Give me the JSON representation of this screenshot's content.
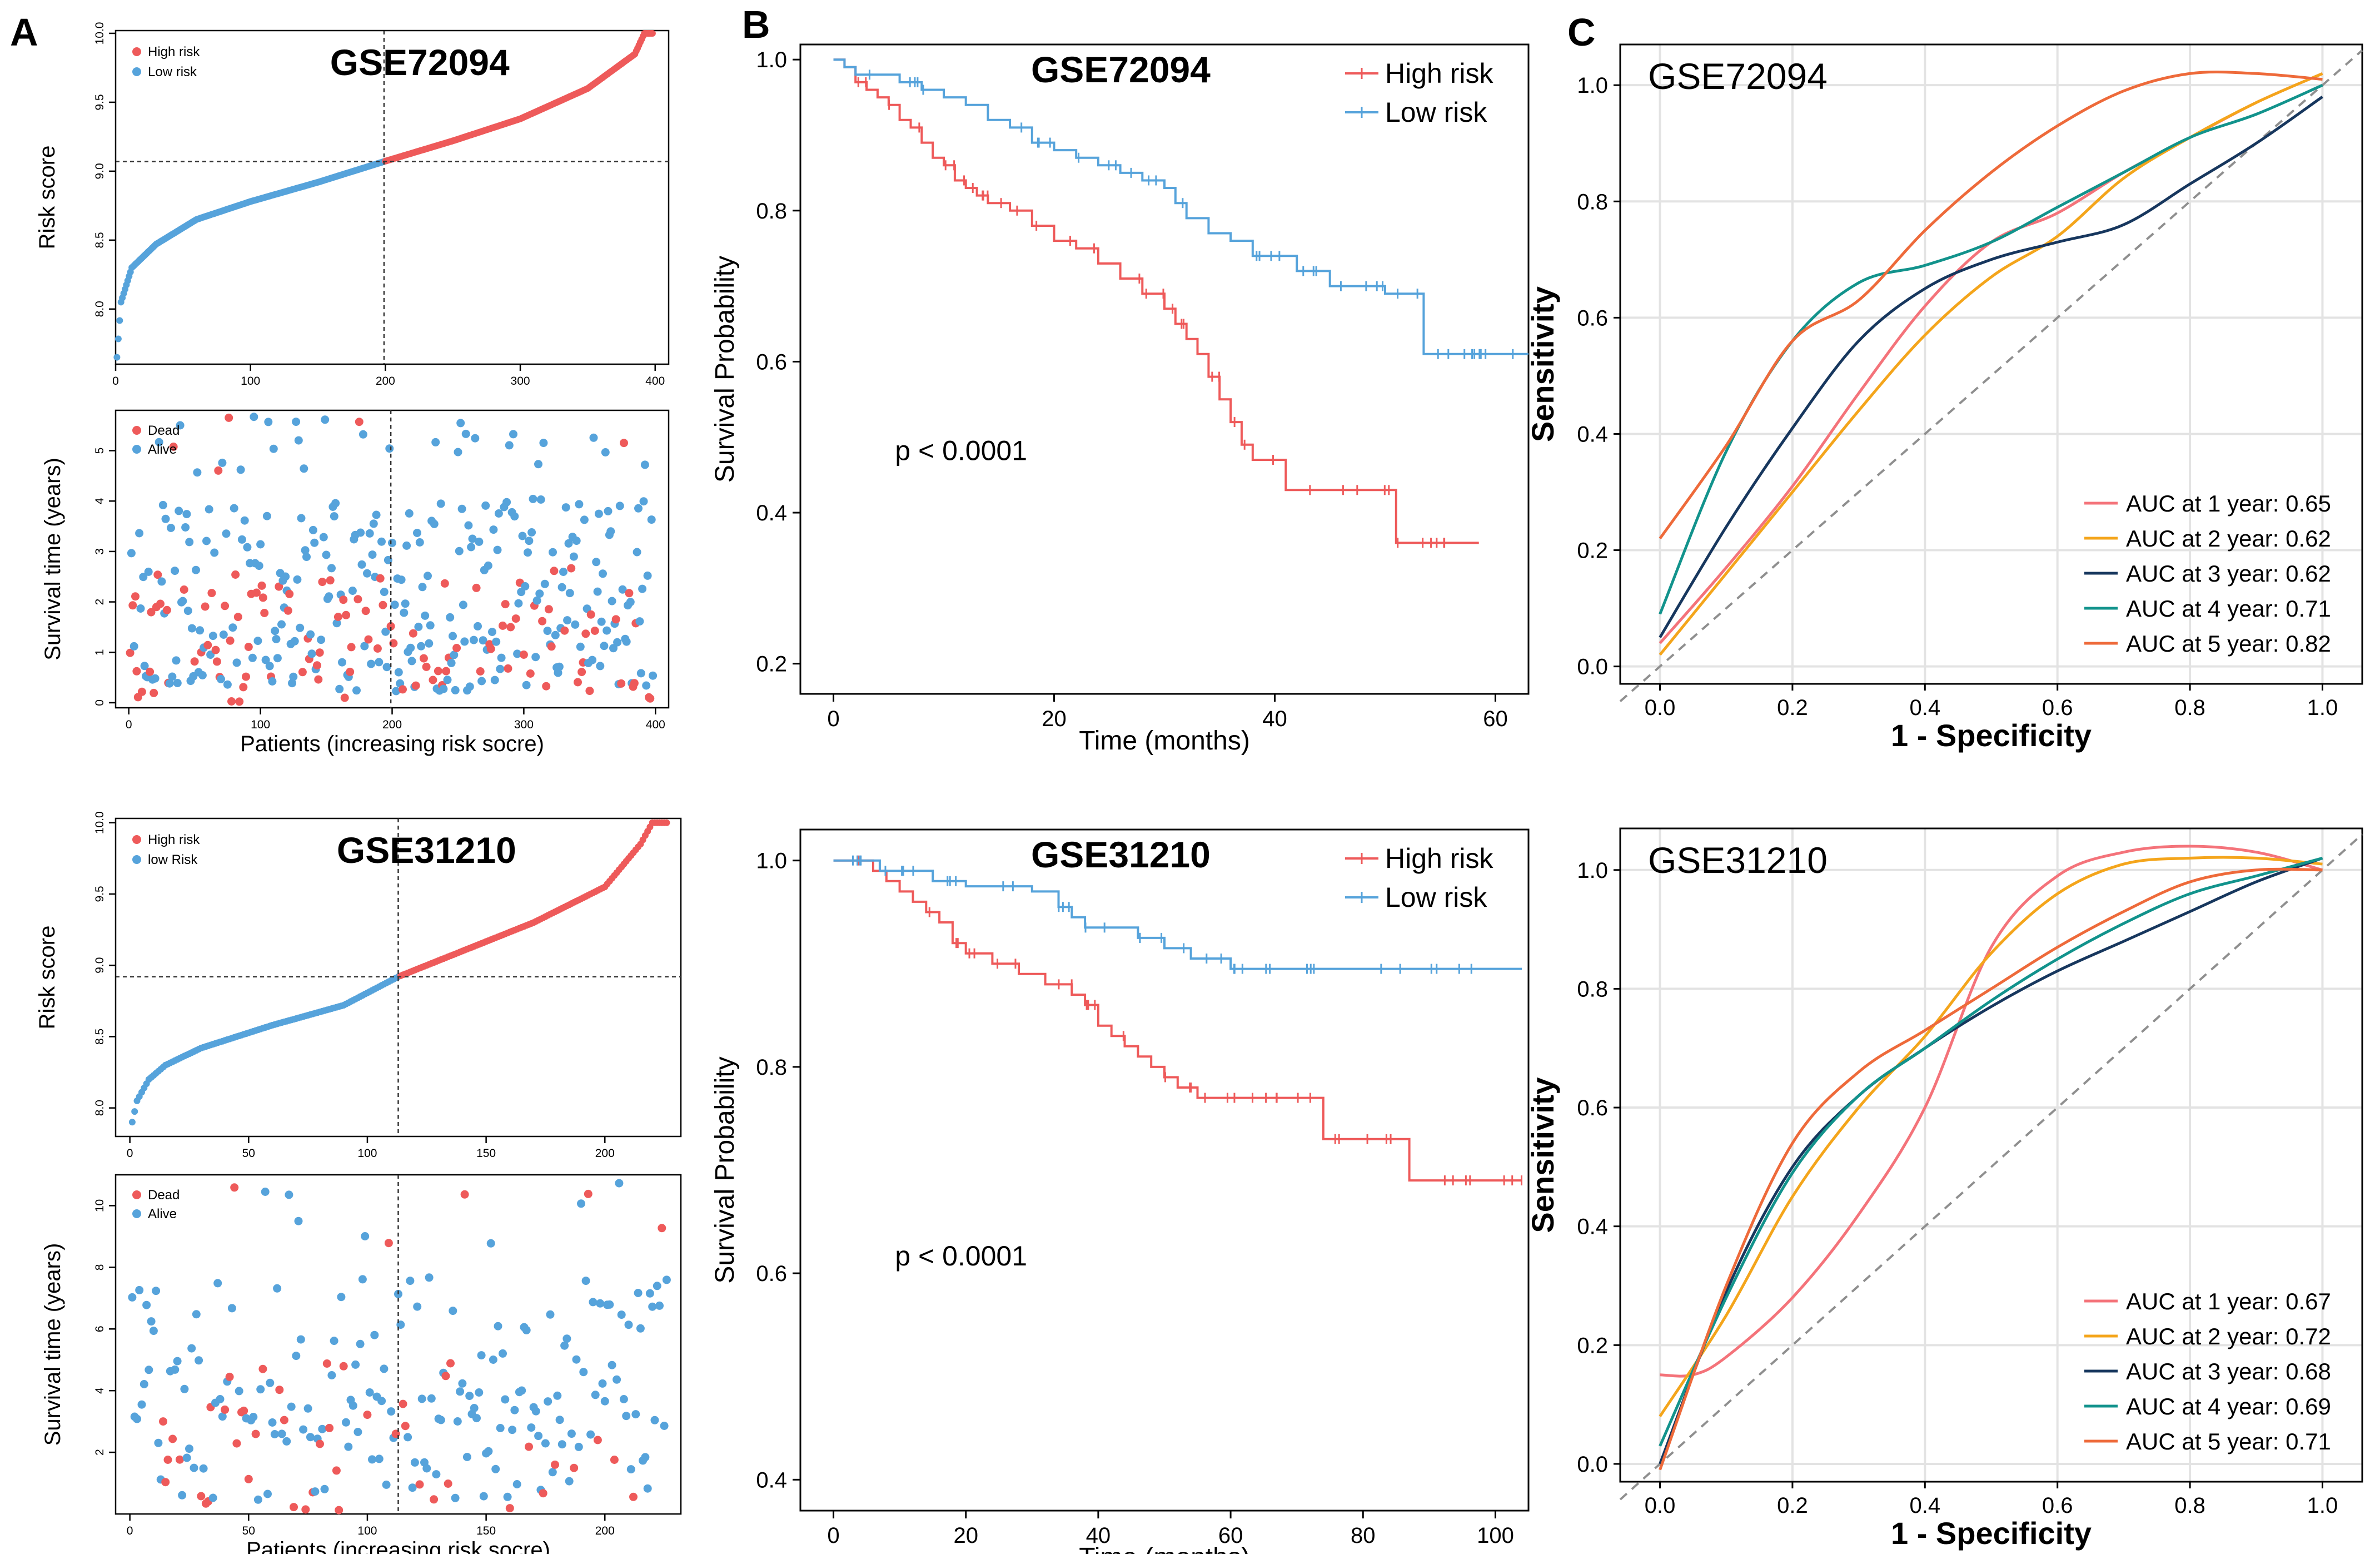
{
  "figure": {
    "panel_labels": [
      "A",
      "B",
      "C"
    ],
    "colors": {
      "high": "#EE5A5A",
      "low": "#56A3DB",
      "dead": "#EE5A5A",
      "alive": "#56A3DB",
      "roc1": "#F4737A",
      "roc2": "#F4A51B",
      "roc3": "#17375E",
      "roc4": "#12938C",
      "roc5": "#EE6A3A",
      "diag": "#8F8F8F"
    }
  },
  "chart_data": [
    {
      "id": "A1",
      "type": "scatter",
      "title": "GSE72094",
      "xlabel": "",
      "ylabel": "Risk score",
      "xlim": [
        0,
        410
      ],
      "ylim": [
        7.6,
        10.02
      ],
      "xticks": [
        0,
        100,
        200,
        300,
        400
      ],
      "yticks": [
        8.0,
        8.5,
        9.0,
        9.5,
        10.0
      ],
      "n_patients": 398,
      "cutoff_patient": 199,
      "cutoff_score": 9.07,
      "legend": [
        "High risk",
        "Low risk"
      ],
      "legend_position": "top-left",
      "curve_anchors": {
        "x": [
          1,
          4,
          12,
          30,
          60,
          100,
          150,
          199,
          250,
          300,
          350,
          385,
          392,
          398
        ],
        "y": [
          7.65,
          8.05,
          8.3,
          8.47,
          8.65,
          8.78,
          8.92,
          9.07,
          9.22,
          9.38,
          9.6,
          9.85,
          10.0,
          10.0
        ]
      }
    },
    {
      "id": "A2",
      "type": "scatter",
      "title": "",
      "xlabel": "Patients (increasing risk socre)",
      "ylabel": "Survival time (years)",
      "xlim": [
        -10,
        410
      ],
      "ylim": [
        -0.1,
        5.8
      ],
      "xticks": [
        0,
        100,
        200,
        300,
        400
      ],
      "yticks": [
        0,
        1,
        2,
        3,
        4,
        5
      ],
      "cutoff_patient": 199,
      "n_points": 398,
      "legend": [
        "Dead",
        "Alive"
      ],
      "legend_position": "top-left"
    },
    {
      "id": "A3",
      "type": "scatter",
      "title": "GSE31210",
      "xlabel": "",
      "ylabel": "Risk score",
      "xlim": [
        -6,
        232
      ],
      "ylim": [
        7.8,
        10.03
      ],
      "xticks": [
        0,
        50,
        100,
        150,
        200
      ],
      "yticks": [
        8.0,
        8.5,
        9.0,
        9.5,
        10.0
      ],
      "n_patients": 226,
      "cutoff_patient": 113,
      "cutoff_score": 8.92,
      "legend": [
        "High risk",
        "low Risk"
      ],
      "legend_position": "top-left",
      "curve_anchors": {
        "x": [
          1,
          3,
          8,
          15,
          30,
          60,
          90,
          113,
          140,
          170,
          200,
          215,
          220,
          226
        ],
        "y": [
          7.9,
          8.05,
          8.2,
          8.3,
          8.42,
          8.58,
          8.72,
          8.92,
          9.1,
          9.3,
          9.55,
          9.85,
          10.0,
          10.0
        ]
      }
    },
    {
      "id": "A4",
      "type": "scatter",
      "title": "",
      "xlabel": "Patients (increasing risk socre)",
      "ylabel": "Survival time (years)",
      "xlim": [
        -6,
        232
      ],
      "ylim": [
        0,
        11
      ],
      "xticks": [
        0,
        50,
        100,
        150,
        200
      ],
      "yticks": [
        2,
        4,
        6,
        8,
        10
      ],
      "cutoff_patient": 113,
      "n_points": 226,
      "legend": [
        "Dead",
        "Alive"
      ],
      "legend_position": "top-left"
    },
    {
      "id": "B1",
      "type": "line",
      "title": "GSE72094",
      "xlabel": "Time (months)",
      "ylabel": "Survival Probability",
      "xlim": [
        -3,
        63
      ],
      "ylim": [
        0.16,
        1.02
      ],
      "xticks": [
        0,
        20,
        40,
        60
      ],
      "yticks": [
        0.2,
        0.4,
        0.6,
        0.8,
        1.0
      ],
      "annotation": "p < 0.0001",
      "legend_position": "top-right",
      "series": [
        {
          "name": "High risk",
          "x": [
            0,
            1,
            2,
            3,
            4,
            5,
            6,
            7,
            8,
            9,
            10,
            11,
            12,
            13,
            14,
            16,
            18,
            20,
            22,
            24,
            26,
            28,
            30,
            31,
            32,
            33,
            34,
            35,
            36,
            37,
            38,
            41,
            51,
            58.5
          ],
          "y": [
            1.0,
            0.99,
            0.97,
            0.96,
            0.95,
            0.94,
            0.92,
            0.91,
            0.89,
            0.87,
            0.86,
            0.84,
            0.83,
            0.82,
            0.81,
            0.8,
            0.78,
            0.76,
            0.75,
            0.73,
            0.71,
            0.69,
            0.67,
            0.65,
            0.63,
            0.61,
            0.58,
            0.55,
            0.52,
            0.49,
            0.47,
            0.43,
            0.36,
            0.36
          ]
        },
        {
          "name": "Low risk",
          "x": [
            0,
            1,
            2,
            4,
            6,
            8,
            10,
            12,
            14,
            16,
            18,
            20,
            22,
            24,
            26,
            28,
            30,
            31,
            32,
            34,
            36,
            38,
            42,
            45,
            50,
            53.5,
            63
          ],
          "y": [
            1.0,
            0.99,
            0.98,
            0.98,
            0.97,
            0.96,
            0.95,
            0.94,
            0.92,
            0.91,
            0.89,
            0.88,
            0.87,
            0.86,
            0.85,
            0.84,
            0.83,
            0.81,
            0.79,
            0.77,
            0.76,
            0.74,
            0.72,
            0.7,
            0.69,
            0.61,
            0.61
          ]
        }
      ]
    },
    {
      "id": "B2",
      "type": "line",
      "title": "GSE31210",
      "xlabel": "Time (months)",
      "ylabel": "Survival Probability",
      "xlim": [
        -5,
        105
      ],
      "ylim": [
        0.37,
        1.03
      ],
      "xticks": [
        0,
        20,
        40,
        60,
        80,
        100
      ],
      "yticks": [
        0.4,
        0.6,
        0.8,
        1.0
      ],
      "annotation": "p < 0.0001",
      "legend_position": "top-right",
      "series": [
        {
          "name": "High risk",
          "x": [
            0,
            6,
            8,
            10,
            12,
            14,
            16,
            18,
            20,
            24,
            28,
            32,
            36,
            38,
            40,
            42,
            44,
            46,
            48,
            50,
            52,
            55,
            60,
            74,
            87,
            104
          ],
          "y": [
            1.0,
            0.99,
            0.98,
            0.97,
            0.96,
            0.95,
            0.94,
            0.92,
            0.91,
            0.9,
            0.89,
            0.88,
            0.87,
            0.86,
            0.84,
            0.83,
            0.82,
            0.81,
            0.8,
            0.79,
            0.78,
            0.77,
            0.77,
            0.73,
            0.69,
            0.69
          ]
        },
        {
          "name": "Low risk",
          "x": [
            0,
            7,
            15,
            20,
            30,
            34,
            36,
            38,
            46,
            50,
            54,
            60,
            104
          ],
          "y": [
            1.0,
            0.99,
            0.98,
            0.975,
            0.97,
            0.955,
            0.945,
            0.935,
            0.925,
            0.915,
            0.905,
            0.895,
            0.895
          ]
        }
      ]
    },
    {
      "id": "C1",
      "type": "line",
      "title": "GSE72094",
      "xlabel": "1 - Specificity",
      "ylabel": "Sensitivity",
      "xlim": [
        -0.06,
        1.06
      ],
      "ylim": [
        -0.03,
        1.07
      ],
      "xticks": [
        0.0,
        0.2,
        0.4,
        0.6,
        0.8,
        1.0
      ],
      "yticks": [
        0.0,
        0.2,
        0.4,
        0.6,
        0.8,
        1.0
      ],
      "legend_position": "bottom-right",
      "series": [
        {
          "name": "AUC at 1 year: 0.65",
          "x": [
            0.0,
            0.1,
            0.2,
            0.3,
            0.4,
            0.5,
            0.6,
            0.7,
            0.8,
            0.9,
            1.0
          ],
          "y": [
            0.04,
            0.17,
            0.31,
            0.47,
            0.62,
            0.73,
            0.78,
            0.85,
            0.91,
            0.97,
            1.02
          ]
        },
        {
          "name": "AUC at 2 year: 0.62",
          "x": [
            0.0,
            0.1,
            0.2,
            0.3,
            0.4,
            0.5,
            0.6,
            0.7,
            0.8,
            0.9,
            1.0
          ],
          "y": [
            0.02,
            0.16,
            0.3,
            0.44,
            0.57,
            0.67,
            0.74,
            0.84,
            0.91,
            0.97,
            1.02
          ]
        },
        {
          "name": "AUC at 3 year: 0.62",
          "x": [
            0.0,
            0.1,
            0.2,
            0.3,
            0.4,
            0.5,
            0.6,
            0.7,
            0.8,
            0.9,
            1.0
          ],
          "y": [
            0.05,
            0.24,
            0.41,
            0.56,
            0.65,
            0.7,
            0.73,
            0.76,
            0.83,
            0.9,
            0.98
          ]
        },
        {
          "name": "AUC at 4 year: 0.71",
          "x": [
            0.0,
            0.1,
            0.2,
            0.3,
            0.4,
            0.5,
            0.6,
            0.7,
            0.8,
            0.9,
            1.0
          ],
          "y": [
            0.09,
            0.37,
            0.56,
            0.66,
            0.69,
            0.73,
            0.79,
            0.85,
            0.91,
            0.95,
            1.0
          ]
        },
        {
          "name": "AUC at 5 year: 0.82",
          "x": [
            0.0,
            0.1,
            0.2,
            0.3,
            0.4,
            0.5,
            0.6,
            0.7,
            0.8,
            0.9,
            1.0
          ],
          "y": [
            0.22,
            0.38,
            0.56,
            0.63,
            0.75,
            0.85,
            0.93,
            0.99,
            1.02,
            1.02,
            1.01
          ]
        }
      ]
    },
    {
      "id": "C2",
      "type": "line",
      "title": "GSE31210",
      "xlabel": "1 - Specificity",
      "ylabel": "Sensitivity",
      "xlim": [
        -0.06,
        1.06
      ],
      "ylim": [
        -0.03,
        1.07
      ],
      "xticks": [
        0.0,
        0.2,
        0.4,
        0.6,
        0.8,
        1.0
      ],
      "yticks": [
        0.0,
        0.2,
        0.4,
        0.6,
        0.8,
        1.0
      ],
      "legend_position": "bottom-right",
      "series": [
        {
          "name": "AUC at 1 year: 0.67",
          "x": [
            0.0,
            0.05,
            0.1,
            0.2,
            0.3,
            0.4,
            0.5,
            0.6,
            0.7,
            0.8,
            0.9,
            1.0
          ],
          "y": [
            0.15,
            0.15,
            0.18,
            0.28,
            0.42,
            0.6,
            0.87,
            0.99,
            1.03,
            1.04,
            1.03,
            1.0
          ]
        },
        {
          "name": "AUC at 2 year: 0.72",
          "x": [
            0.0,
            0.1,
            0.2,
            0.3,
            0.4,
            0.5,
            0.6,
            0.7,
            0.8,
            0.9,
            1.0
          ],
          "y": [
            0.08,
            0.25,
            0.45,
            0.6,
            0.72,
            0.86,
            0.96,
            1.01,
            1.02,
            1.02,
            1.01
          ]
        },
        {
          "name": "AUC at 3 year: 0.68",
          "x": [
            0.0,
            0.1,
            0.2,
            0.3,
            0.4,
            0.5,
            0.6,
            0.7,
            0.8,
            0.9,
            1.0
          ],
          "y": [
            0.0,
            0.29,
            0.5,
            0.62,
            0.7,
            0.77,
            0.83,
            0.88,
            0.93,
            0.98,
            1.02
          ]
        },
        {
          "name": "AUC at 4 year: 0.69",
          "x": [
            0.0,
            0.1,
            0.2,
            0.3,
            0.4,
            0.5,
            0.6,
            0.7,
            0.8,
            0.9,
            1.0
          ],
          "y": [
            0.03,
            0.28,
            0.49,
            0.62,
            0.7,
            0.78,
            0.85,
            0.91,
            0.96,
            0.99,
            1.02
          ]
        },
        {
          "name": "AUC at 5 year: 0.71",
          "x": [
            0.0,
            0.1,
            0.2,
            0.3,
            0.4,
            0.5,
            0.6,
            0.7,
            0.8,
            0.9,
            1.0
          ],
          "y": [
            -0.01,
            0.3,
            0.54,
            0.66,
            0.73,
            0.8,
            0.87,
            0.93,
            0.98,
            1.0,
            1.0
          ]
        }
      ]
    }
  ]
}
